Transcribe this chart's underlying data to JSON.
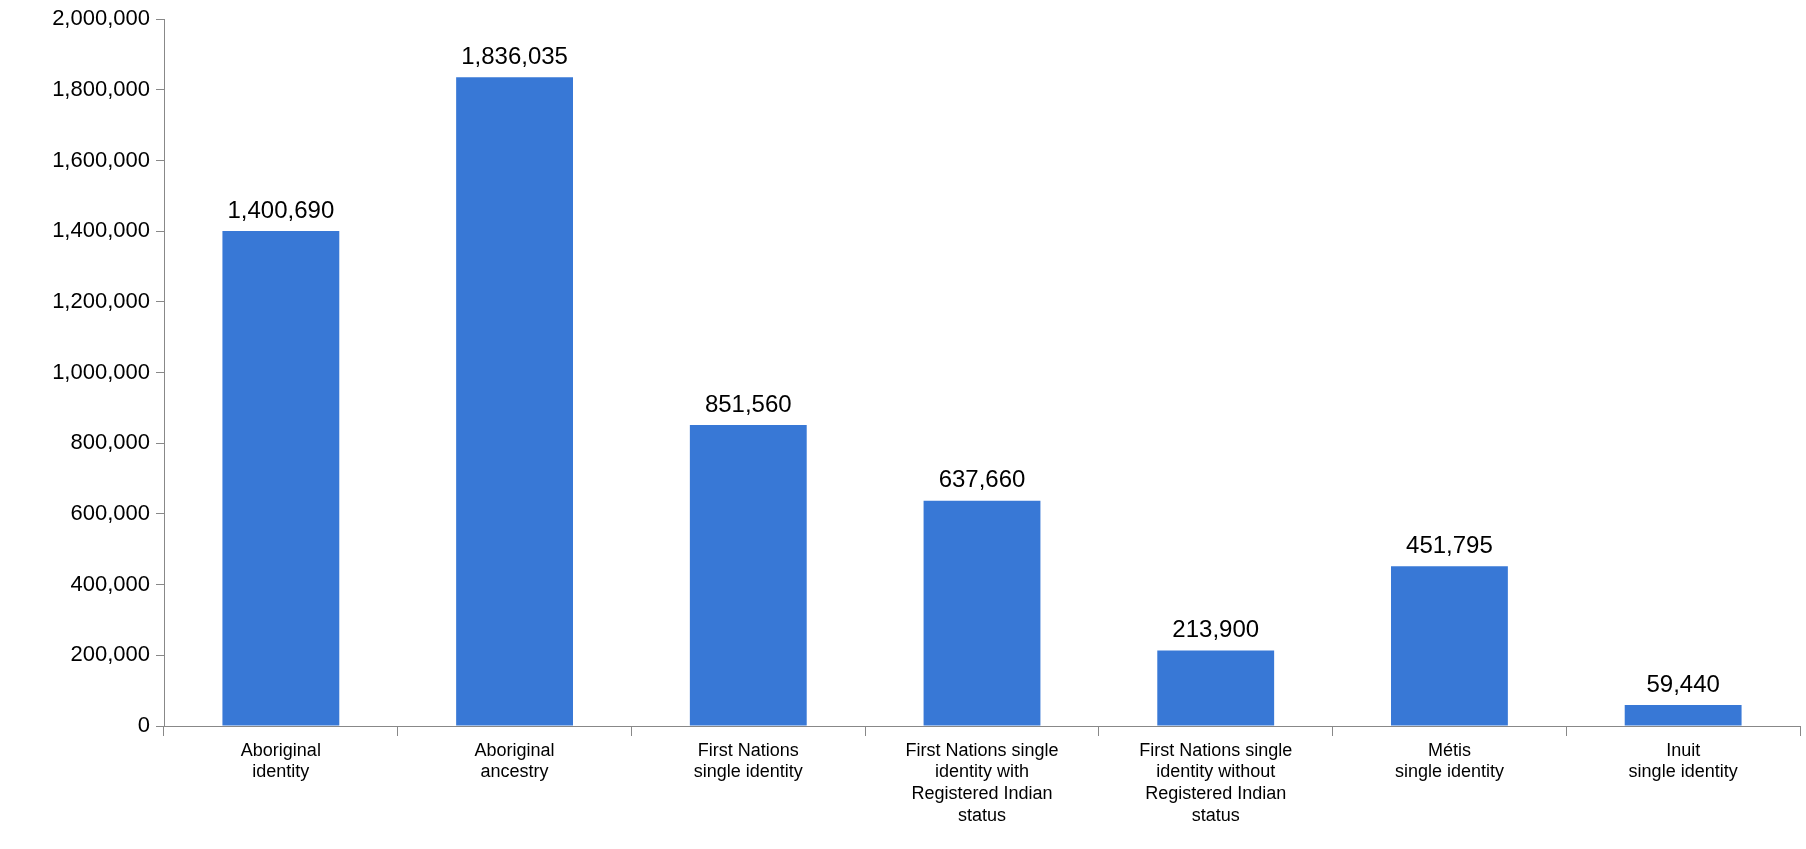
{
  "chart_data": {
    "type": "bar",
    "categories": [
      "Aboriginal\nidentity",
      "Aboriginal\nancestry",
      "First Nations\nsingle identity",
      "First Nations single\nidentity with\nRegistered Indian\nstatus",
      "First Nations single\nidentity without\nRegistered Indian\nstatus",
      "Métis\nsingle identity",
      "Inuit\nsingle identity"
    ],
    "values": [
      1400690,
      1836035,
      851560,
      637660,
      213900,
      451795,
      59440
    ],
    "value_labels": [
      "1,400,690",
      "1,836,035",
      "851,560",
      "637,660",
      "213,900",
      "451,795",
      "59,440"
    ],
    "color": "#3878d6",
    "ylim": [
      0,
      2000000
    ],
    "yticks": [
      {
        "value": 0,
        "label": "0"
      },
      {
        "value": 200000,
        "label": "200,000"
      },
      {
        "value": 400000,
        "label": "400,000"
      },
      {
        "value": 600000,
        "label": "600,000"
      },
      {
        "value": 800000,
        "label": "800,000"
      },
      {
        "value": 1000000,
        "label": "1,000,000"
      },
      {
        "value": 1200000,
        "label": "1,200,000"
      },
      {
        "value": 1400000,
        "label": "1,400,000"
      },
      {
        "value": 1600000,
        "label": "1,600,000"
      },
      {
        "value": 1800000,
        "label": "1,800,000"
      },
      {
        "value": 2000000,
        "label": "2,000,000"
      }
    ],
    "grid": false,
    "legend": false
  }
}
